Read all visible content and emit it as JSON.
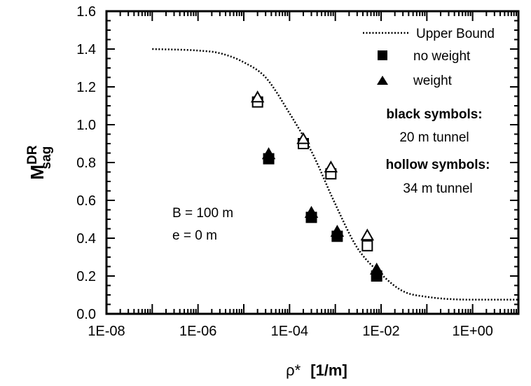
{
  "chart_data": {
    "type": "scatter",
    "x_scale": "log",
    "xlim": [
      1e-08,
      10
    ],
    "ylim": [
      0,
      1.6
    ],
    "x_ticks": [
      1e-08,
      1e-06,
      0.0001,
      0.01,
      1
    ],
    "x_tick_labels": [
      "1E-08",
      "1E-06",
      "1E-04",
      "1E-02",
      "1E+00"
    ],
    "y_ticks": [
      0,
      0.2,
      0.4,
      0.6,
      0.8,
      1.0,
      1.2,
      1.4,
      1.6
    ],
    "y_tick_labels": [
      "0.0",
      "0.2",
      "0.4",
      "0.6",
      "0.8",
      "1.0",
      "1.2",
      "1.4",
      "1.6"
    ],
    "xlabel_symbol": "ρ*",
    "xlabel_unit": "[1/m]",
    "ylabel_main": "M",
    "ylabel_sup": "DR",
    "ylabel_sub": "sag",
    "grid": false,
    "legend_position": "top-right",
    "series": [
      {
        "name": "Upper Bound",
        "style": "dotted-line",
        "points": [
          [
            1e-07,
            1.4
          ],
          [
            1e-06,
            1.392
          ],
          [
            3e-06,
            1.378
          ],
          [
            1e-05,
            1.33
          ],
          [
            3e-05,
            1.25
          ],
          [
            0.0001,
            1.06
          ],
          [
            0.0003,
            0.86
          ],
          [
            0.001,
            0.58
          ],
          [
            0.003,
            0.35
          ],
          [
            0.01,
            0.21
          ],
          [
            0.03,
            0.12
          ],
          [
            0.1,
            0.09
          ],
          [
            1,
            0.075
          ],
          [
            10,
            0.075
          ]
        ]
      },
      {
        "name": "no weight",
        "marker": "square",
        "filled_points": [
          [
            3.5e-05,
            0.82
          ],
          [
            0.0003,
            0.51
          ],
          [
            0.0011,
            0.41
          ],
          [
            0.008,
            0.2
          ]
        ],
        "hollow_points": [
          [
            2e-05,
            1.12
          ],
          [
            0.0002,
            0.9
          ],
          [
            0.0008,
            0.74
          ],
          [
            0.005,
            0.36
          ]
        ]
      },
      {
        "name": "weight",
        "marker": "triangle",
        "filled_points": [
          [
            3.5e-05,
            0.84
          ],
          [
            0.0003,
            0.53
          ],
          [
            0.0011,
            0.43
          ],
          [
            0.008,
            0.23
          ]
        ],
        "hollow_points": [
          [
            2e-05,
            1.14
          ],
          [
            0.0002,
            0.92
          ],
          [
            0.0008,
            0.77
          ],
          [
            0.005,
            0.41
          ]
        ]
      }
    ],
    "legend": {
      "upper_bound": "Upper Bound",
      "no_weight": "no weight",
      "weight": "weight",
      "black_title": "black symbols:",
      "black_desc": "20 m tunnel",
      "hollow_title": "hollow symbols:",
      "hollow_desc": "34 m tunnel"
    },
    "annotations": [
      "B = 100 m",
      "e = 0 m"
    ]
  }
}
